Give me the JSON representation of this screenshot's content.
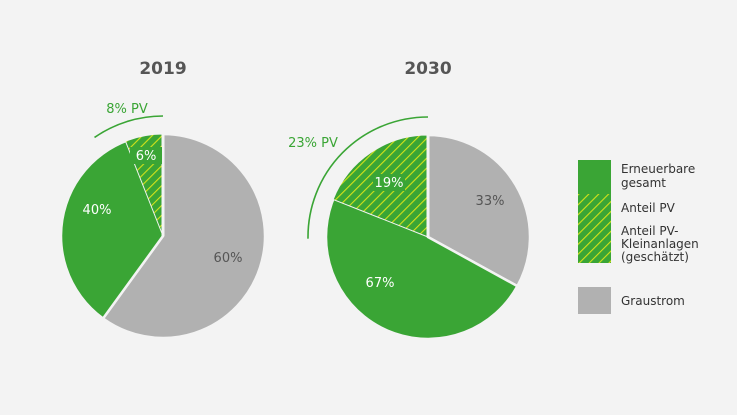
{
  "chart_data": [
    {
      "type": "pie",
      "title": "2019",
      "slices": [
        {
          "label": "60%",
          "value": 60,
          "category": "Graustrom"
        },
        {
          "label": "40%",
          "value": 40,
          "category": "Erneuerbare gesamt"
        }
      ],
      "pv_share": {
        "value": 8,
        "label": "8% PV"
      },
      "pv_small_share": {
        "value": 6,
        "label": "6%"
      }
    },
    {
      "type": "pie",
      "title": "2030",
      "slices": [
        {
          "label": "33%",
          "value": 33,
          "category": "Graustrom"
        },
        {
          "label": "67%",
          "value": 67,
          "category": "Erneuerbare gesamt"
        }
      ],
      "pv_share": {
        "value": 23,
        "label": "23% PV"
      },
      "pv_small_share": {
        "value": 19,
        "label": "19%"
      }
    }
  ],
  "legend": [
    {
      "label": "Erneuerbare gesamt",
      "swatch": "solid-green"
    },
    {
      "label": "Anteil PV",
      "swatch": "hatch-green"
    },
    {
      "label": "Anteil PV-Kleinanlagen (geschätzt)",
      "swatch": "hatch-green-filled"
    },
    {
      "label": "Graustrom",
      "swatch": "solid-gray"
    }
  ],
  "colors": {
    "background": "#f3f3f3",
    "green": "#3aa535",
    "gray": "#b1b1b1",
    "hatch": "#d3e21a",
    "white": "#ffffff"
  }
}
